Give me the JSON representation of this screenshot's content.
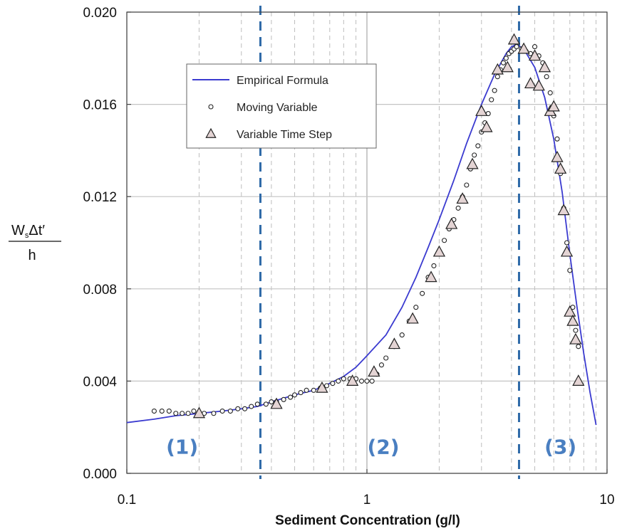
{
  "chart_data": {
    "type": "scatter",
    "xscale": "log",
    "xlim": [
      0.1,
      10
    ],
    "ylim": [
      0.0,
      0.02
    ],
    "xticks": [
      {
        "value": 0.1,
        "label": "0.1"
      },
      {
        "value": 1,
        "label": "1"
      },
      {
        "value": 10,
        "label": "10"
      }
    ],
    "yticks": [
      {
        "value": 0.0,
        "label": "0.000"
      },
      {
        "value": 0.004,
        "label": "0.004"
      },
      {
        "value": 0.008,
        "label": "0.008"
      },
      {
        "value": 0.012,
        "label": "0.012"
      },
      {
        "value": 0.016,
        "label": "0.016"
      },
      {
        "value": 0.02,
        "label": "0.020"
      }
    ],
    "xlabel": "Sediment Concentration (g/l)",
    "ylabel": {
      "num_main": "W",
      "num_sub": "s",
      "num_rest": "Δt′",
      "den": "h"
    },
    "grid": true,
    "legend_position": "top-left",
    "colors": {
      "line": "#3b3bd0",
      "divider": "#2f6aa8",
      "region": "#4a7fc1",
      "triangle_fill": "#e4d4d4"
    },
    "series": [
      {
        "name": "Empirical Formula",
        "kind": "line",
        "x": [
          0.1,
          0.13,
          0.16,
          0.2,
          0.25,
          0.3,
          0.35,
          0.4,
          0.5,
          0.6,
          0.7,
          0.8,
          0.9,
          1.0,
          1.2,
          1.4,
          1.6,
          1.8,
          2.0,
          2.3,
          2.6,
          3.0,
          3.4,
          3.8,
          4.0,
          4.2,
          4.5,
          5.0,
          5.5,
          6.0,
          6.5,
          7.0,
          7.5,
          8.0,
          8.5,
          9.0
        ],
        "y": [
          0.0022,
          0.00235,
          0.0025,
          0.0026,
          0.0027,
          0.0028,
          0.0029,
          0.0031,
          0.0034,
          0.0036,
          0.0039,
          0.0042,
          0.0046,
          0.0051,
          0.006,
          0.0072,
          0.0085,
          0.0098,
          0.011,
          0.0127,
          0.0143,
          0.016,
          0.0173,
          0.0182,
          0.0185,
          0.0186,
          0.0184,
          0.0176,
          0.0163,
          0.0145,
          0.0122,
          0.0095,
          0.0072,
          0.0052,
          0.0035,
          0.0021
        ]
      },
      {
        "name": "Moving Variable",
        "kind": "circle",
        "x": [
          0.13,
          0.14,
          0.15,
          0.16,
          0.17,
          0.18,
          0.19,
          0.21,
          0.23,
          0.25,
          0.27,
          0.29,
          0.31,
          0.33,
          0.35,
          0.38,
          0.4,
          0.42,
          0.45,
          0.48,
          0.5,
          0.53,
          0.56,
          0.6,
          0.64,
          0.68,
          0.72,
          0.76,
          0.8,
          0.85,
          0.9,
          0.95,
          1.0,
          1.05,
          1.1,
          1.15,
          1.2,
          1.3,
          1.4,
          1.5,
          1.6,
          1.7,
          1.8,
          1.9,
          2.0,
          2.1,
          2.2,
          2.3,
          2.4,
          2.5,
          2.6,
          2.7,
          2.8,
          2.9,
          3.0,
          3.1,
          3.2,
          3.3,
          3.4,
          3.5,
          3.6,
          3.7,
          3.8,
          3.9,
          4.0,
          4.1,
          4.2,
          4.4,
          4.6,
          4.8,
          5.0,
          5.2,
          5.4,
          5.6,
          5.8,
          6.0,
          6.2,
          6.4,
          6.6,
          6.8,
          7.0,
          7.2,
          7.4,
          7.6
        ],
        "y": [
          0.0027,
          0.0027,
          0.0027,
          0.0026,
          0.0026,
          0.0026,
          0.0027,
          0.0026,
          0.0026,
          0.0027,
          0.0027,
          0.0028,
          0.0028,
          0.0029,
          0.003,
          0.003,
          0.0031,
          0.0031,
          0.0032,
          0.0033,
          0.0034,
          0.0035,
          0.0036,
          0.0036,
          0.0037,
          0.0038,
          0.0039,
          0.004,
          0.0041,
          0.0041,
          0.0041,
          0.004,
          0.004,
          0.004,
          0.0043,
          0.0047,
          0.005,
          0.0055,
          0.006,
          0.0066,
          0.0072,
          0.0078,
          0.0085,
          0.009,
          0.0096,
          0.0101,
          0.0106,
          0.011,
          0.0115,
          0.012,
          0.0125,
          0.0132,
          0.0138,
          0.0142,
          0.0148,
          0.0152,
          0.0156,
          0.0162,
          0.0166,
          0.0172,
          0.0175,
          0.0178,
          0.018,
          0.0182,
          0.0183,
          0.0184,
          0.0185,
          0.0184,
          0.0183,
          0.0182,
          0.0185,
          0.0181,
          0.0178,
          0.0172,
          0.0165,
          0.0155,
          0.0145,
          0.013,
          0.0115,
          0.01,
          0.0088,
          0.0072,
          0.0062,
          0.0055
        ]
      },
      {
        "name": "Variable Time Step",
        "kind": "triangle",
        "x": [
          0.2,
          0.42,
          0.65,
          0.87,
          1.07,
          1.3,
          1.55,
          1.85,
          2.0,
          2.25,
          2.5,
          2.75,
          3.0,
          3.15,
          3.5,
          3.85,
          4.1,
          4.5,
          4.8,
          5.0,
          5.2,
          5.5,
          5.8,
          6.0,
          6.2,
          6.4,
          6.6,
          6.8,
          7.0,
          7.2,
          7.4,
          7.6
        ],
        "y": [
          0.0026,
          0.003,
          0.0037,
          0.004,
          0.0044,
          0.0056,
          0.0067,
          0.0085,
          0.0096,
          0.0108,
          0.0119,
          0.0134,
          0.0157,
          0.015,
          0.0175,
          0.0176,
          0.0188,
          0.0184,
          0.0169,
          0.0181,
          0.0168,
          0.0176,
          0.0157,
          0.0159,
          0.0137,
          0.0132,
          0.0114,
          0.0096,
          0.007,
          0.0066,
          0.0058,
          0.004
        ]
      }
    ],
    "dividers": [
      0.36,
      4.3
    ],
    "annotations": [
      {
        "text": "(1)",
        "x": 0.17,
        "y": 0.00085
      },
      {
        "text": "(2)",
        "x": 1.17,
        "y": 0.00085
      },
      {
        "text": "(3)",
        "x": 6.4,
        "y": 0.00085
      }
    ]
  }
}
